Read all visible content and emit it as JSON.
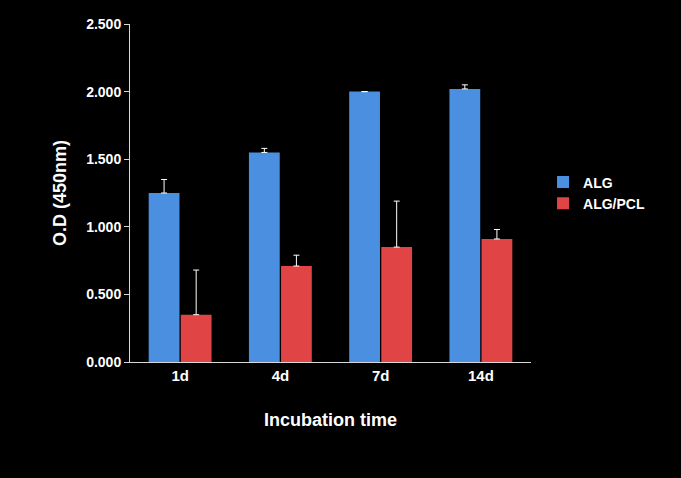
{
  "chart_data": {
    "type": "bar",
    "x_label": "Incubation time",
    "y_label": "O.D (450nm)",
    "categories": [
      "1d",
      "4d",
      "7d",
      "14d"
    ],
    "series": [
      {
        "name": "ALG",
        "color": "#4a8fe0",
        "values": [
          1.25,
          1.55,
          2.0,
          2.02
        ],
        "errors": [
          0.1,
          0.03,
          0.0,
          0.03
        ]
      },
      {
        "name": "ALG/PCL",
        "color": "#e04444",
        "values": [
          0.35,
          0.71,
          0.85,
          0.91
        ],
        "errors": [
          0.33,
          0.08,
          0.34,
          0.07
        ]
      }
    ],
    "ylim": [
      0,
      2.5
    ],
    "yticks": [
      {
        "value": 0,
        "label": "0.000"
      },
      {
        "value": 0.5,
        "label": "0.500"
      },
      {
        "value": 1.0,
        "label": "1.000"
      },
      {
        "value": 1.5,
        "label": "1.500"
      },
      {
        "value": 2.0,
        "label": "2.000"
      },
      {
        "value": 2.5,
        "label": "2.500"
      }
    ],
    "grid": false,
    "legend": "right"
  }
}
